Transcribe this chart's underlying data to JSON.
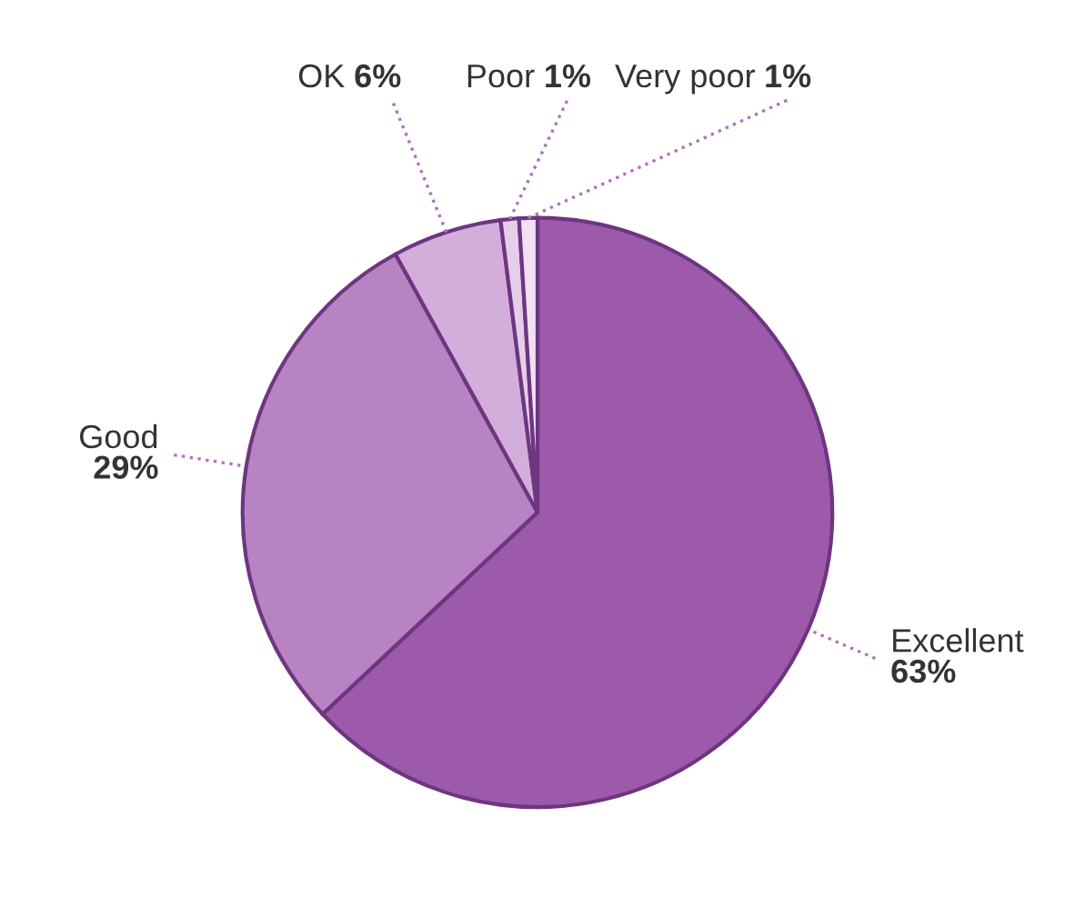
{
  "chart_data": {
    "type": "pie",
    "categories": [
      "Excellent",
      "Good",
      "OK",
      "Poor",
      "Very poor"
    ],
    "values": [
      63,
      29,
      6,
      1,
      1
    ],
    "value_labels": [
      "63%",
      "29%",
      "6%",
      "1%",
      "1%"
    ],
    "colors": [
      "#9d5aab",
      "#b883c3",
      "#d3aedb",
      "#e6cdea",
      "#f1e0f3"
    ]
  }
}
